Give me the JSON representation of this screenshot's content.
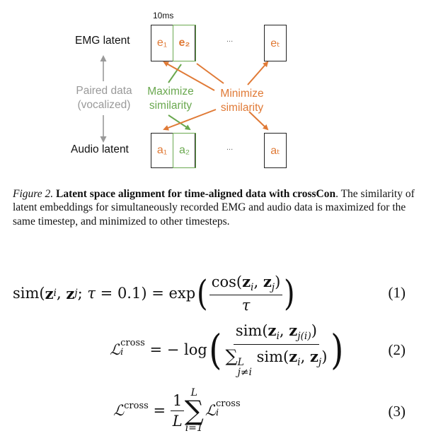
{
  "figure": {
    "timestep_label": "10ms",
    "emg_label": "EMG latent",
    "audio_label": "Audio latent",
    "paired_line1": "Paired data",
    "paired_line2": "(vocalized)",
    "emg_cells": [
      "e₁",
      "e₂",
      "eₜ"
    ],
    "audio_cells": [
      "a₁",
      "a₂",
      "aₜ"
    ],
    "ellipsis": "...",
    "maximize_line1": "Maximize",
    "maximize_line2": "similarity",
    "minimize_line1": "Minimize",
    "minimize_line2": "similarity",
    "colors": {
      "maximize": "#6aa84f",
      "minimize": "#e07a36",
      "neutral": "#999999"
    }
  },
  "caption": {
    "figure_label": "Figure 2.",
    "title": "Latent space alignment for time-aligned data with crossCon",
    "body": ". The similarity of latent embeddings for simultaneously recorded EMG and audio data is maximized for the same timestep, and minimized to other timesteps."
  },
  "equations": {
    "eq1_number": "(1)",
    "eq2_number": "(2)",
    "eq3_number": "(3)",
    "tau_value": "0.1",
    "superscript": "cross"
  }
}
